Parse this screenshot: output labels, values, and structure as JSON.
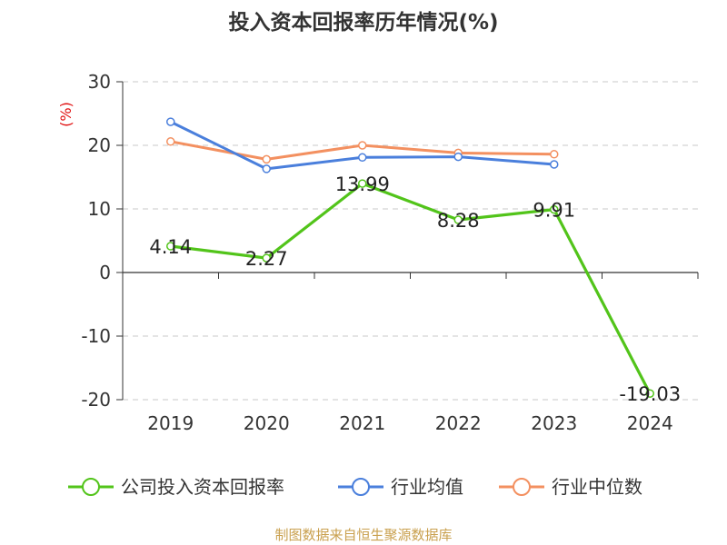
{
  "chart_data": {
    "type": "line",
    "title": "投入资本回报率历年情况(%)",
    "ylabel": "(%)",
    "categories": [
      "2019",
      "2020",
      "2021",
      "2022",
      "2023",
      "2024"
    ],
    "ylim": [
      -20,
      30
    ],
    "yticks": [
      30,
      20,
      10,
      0,
      -10,
      -20
    ],
    "grid": true,
    "legend_position": "bottom",
    "series": [
      {
        "name": "公司投入资本回报率",
        "color": "#52c41a",
        "values": [
          4.14,
          2.27,
          13.99,
          8.28,
          9.91,
          -19.03
        ],
        "data_labels": [
          "4.14",
          "2.27",
          "13.99",
          "8.28",
          "9.91",
          "-19.03"
        ]
      },
      {
        "name": "行业均值",
        "color": "#4a7fdc",
        "values": [
          23.7,
          16.3,
          18.1,
          18.2,
          17.0,
          null
        ]
      },
      {
        "name": "行业中位数",
        "color": "#f39060",
        "values": [
          20.6,
          17.8,
          20.0,
          18.8,
          18.6,
          null
        ]
      }
    ]
  },
  "source": {
    "text": "制图数据来自恒生聚源数据库",
    "color": "#c9a04e"
  },
  "ylabel_color": "#e01010"
}
